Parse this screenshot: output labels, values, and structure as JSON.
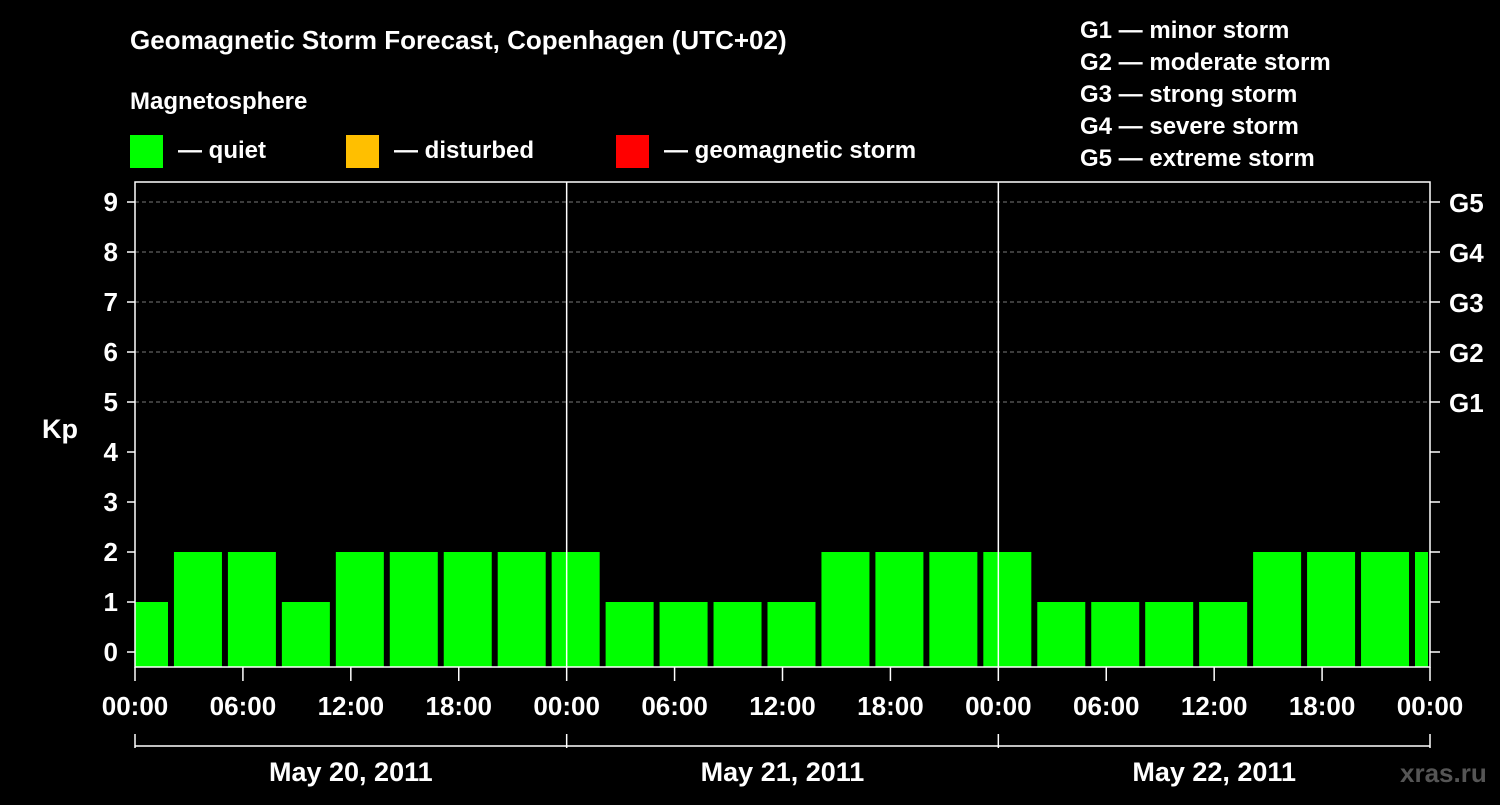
{
  "chart_data": {
    "type": "bar",
    "title": "Geomagnetic Storm Forecast, Copenhagen (UTC+02)",
    "subtitle": "Magnetosphere",
    "ylabel": "Kp",
    "ylim": [
      0,
      9
    ],
    "yticks": [
      "0",
      "1",
      "2",
      "3",
      "4",
      "5",
      "6",
      "7",
      "8",
      "9"
    ],
    "right_axis": [
      {
        "kp": 5,
        "label": "G1"
      },
      {
        "kp": 6,
        "label": "G2"
      },
      {
        "kp": 7,
        "label": "G3"
      },
      {
        "kp": 8,
        "label": "G4"
      },
      {
        "kp": 9,
        "label": "G5"
      }
    ],
    "status_legend": [
      {
        "label": "— quiet",
        "color": "#00ff00"
      },
      {
        "label": "— disturbed",
        "color": "#ffbf00"
      },
      {
        "label": "— geomagnetic storm",
        "color": "#ff0000"
      }
    ],
    "storm_legend": [
      "G1 — minor storm",
      "G2 — moderate storm",
      "G3 — strong storm",
      "G4 — severe storm",
      "G5 — extreme storm"
    ],
    "x_tick_labels": [
      "00:00",
      "06:00",
      "12:00",
      "18:00",
      "00:00",
      "06:00",
      "12:00",
      "18:00",
      "00:00",
      "06:00",
      "12:00",
      "18:00",
      "00:00"
    ],
    "days": [
      "May 20, 2011",
      "May 21, 2011",
      "May 22, 2011"
    ],
    "interval_hours": 3,
    "values": [
      1,
      2,
      2,
      1,
      2,
      2,
      2,
      2,
      2,
      1,
      1,
      1,
      1,
      2,
      2,
      2,
      2,
      1,
      1,
      1,
      1,
      2,
      2,
      2,
      2
    ],
    "bar_color": "#00ff00",
    "grid": true
  },
  "watermark": "xras.ru"
}
